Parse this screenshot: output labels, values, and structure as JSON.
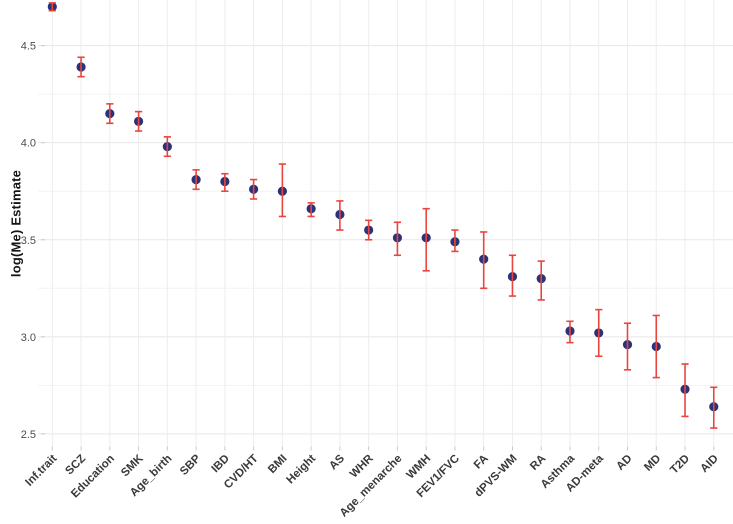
{
  "figure": {
    "background": "#ffffff"
  },
  "chart_data": {
    "type": "scatter",
    "subtype": "point-with-error-bars",
    "title": "",
    "xlabel": "",
    "ylabel": "log(Me) Estimate",
    "legend": "none",
    "grid": "horizontal major+minor, vertical per category",
    "categories": [
      "Inf.trait",
      "SCZ",
      "Education",
      "SMK",
      "Age_birth",
      "SBP",
      "IBD",
      "CVD/HT",
      "BMI",
      "Height",
      "AS",
      "WHR",
      "Age_menarche",
      "WMH",
      "FEV1/FVC",
      "FA",
      "dPVS-WM",
      "RA",
      "Asthma",
      "AD-meta",
      "AD",
      "MD",
      "T2D",
      "AID"
    ],
    "series": [
      {
        "name": "log(Me) estimate",
        "values": [
          4.7,
          4.39,
          4.15,
          4.11,
          3.98,
          3.81,
          3.8,
          3.76,
          3.75,
          3.66,
          3.63,
          3.55,
          3.51,
          3.51,
          3.49,
          3.4,
          3.31,
          3.3,
          3.03,
          3.02,
          2.96,
          2.95,
          2.73,
          2.64
        ],
        "ci_low": [
          4.68,
          4.34,
          4.1,
          4.06,
          3.93,
          3.76,
          3.75,
          3.71,
          3.62,
          3.62,
          3.55,
          3.5,
          3.42,
          3.34,
          3.44,
          3.25,
          3.21,
          3.19,
          2.97,
          2.9,
          2.83,
          2.79,
          2.59,
          2.53
        ],
        "ci_high": [
          4.72,
          4.44,
          4.2,
          4.16,
          4.03,
          3.86,
          3.84,
          3.81,
          3.89,
          3.69,
          3.7,
          3.6,
          3.59,
          3.66,
          3.55,
          3.54,
          3.42,
          3.39,
          3.08,
          3.14,
          3.07,
          3.11,
          2.86,
          2.74
        ]
      }
    ],
    "yticks": [
      2.5,
      3.0,
      3.5,
      4.0,
      4.5
    ],
    "ytick_labels": [
      "2.5",
      "3.0",
      "3.5",
      "4.0",
      "4.5"
    ],
    "yticks_minor": [
      2.75,
      3.25,
      3.75,
      4.25
    ],
    "ylim": [
      2.435,
      4.735
    ],
    "colors": {
      "point": "#2b3277",
      "error_bar": "#e8453f",
      "grid_major": "#e7e7e7",
      "grid_minor": "#f3f3f3",
      "grid_vertical": "#ededed",
      "tick_mark": "#c9c9c9",
      "axis_tick_text": "#4d4d4d",
      "category_text": "#3a3a3a",
      "axis_title_text": "#141414"
    }
  }
}
